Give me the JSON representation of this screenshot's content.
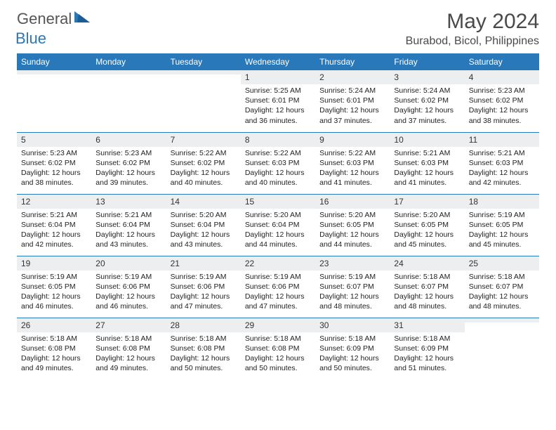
{
  "brand": {
    "part1": "General",
    "part2": "Blue"
  },
  "title": "May 2024",
  "location": "Burabod, Bicol, Philippines",
  "colors": {
    "header_bg": "#2978b9",
    "header_text": "#ffffff",
    "daynum_bg": "#eceeef",
    "divider": "#2978b9",
    "text": "#222222",
    "title_text": "#4a4a4a"
  },
  "day_headers": [
    "Sunday",
    "Monday",
    "Tuesday",
    "Wednesday",
    "Thursday",
    "Friday",
    "Saturday"
  ],
  "weeks": [
    [
      {
        "n": "",
        "sr": "",
        "ss": "",
        "dl": ""
      },
      {
        "n": "",
        "sr": "",
        "ss": "",
        "dl": ""
      },
      {
        "n": "",
        "sr": "",
        "ss": "",
        "dl": ""
      },
      {
        "n": "1",
        "sr": "5:25 AM",
        "ss": "6:01 PM",
        "dl": "12 hours and 36 minutes."
      },
      {
        "n": "2",
        "sr": "5:24 AM",
        "ss": "6:01 PM",
        "dl": "12 hours and 37 minutes."
      },
      {
        "n": "3",
        "sr": "5:24 AM",
        "ss": "6:02 PM",
        "dl": "12 hours and 37 minutes."
      },
      {
        "n": "4",
        "sr": "5:23 AM",
        "ss": "6:02 PM",
        "dl": "12 hours and 38 minutes."
      }
    ],
    [
      {
        "n": "5",
        "sr": "5:23 AM",
        "ss": "6:02 PM",
        "dl": "12 hours and 38 minutes."
      },
      {
        "n": "6",
        "sr": "5:23 AM",
        "ss": "6:02 PM",
        "dl": "12 hours and 39 minutes."
      },
      {
        "n": "7",
        "sr": "5:22 AM",
        "ss": "6:02 PM",
        "dl": "12 hours and 40 minutes."
      },
      {
        "n": "8",
        "sr": "5:22 AM",
        "ss": "6:03 PM",
        "dl": "12 hours and 40 minutes."
      },
      {
        "n": "9",
        "sr": "5:22 AM",
        "ss": "6:03 PM",
        "dl": "12 hours and 41 minutes."
      },
      {
        "n": "10",
        "sr": "5:21 AM",
        "ss": "6:03 PM",
        "dl": "12 hours and 41 minutes."
      },
      {
        "n": "11",
        "sr": "5:21 AM",
        "ss": "6:03 PM",
        "dl": "12 hours and 42 minutes."
      }
    ],
    [
      {
        "n": "12",
        "sr": "5:21 AM",
        "ss": "6:04 PM",
        "dl": "12 hours and 42 minutes."
      },
      {
        "n": "13",
        "sr": "5:21 AM",
        "ss": "6:04 PM",
        "dl": "12 hours and 43 minutes."
      },
      {
        "n": "14",
        "sr": "5:20 AM",
        "ss": "6:04 PM",
        "dl": "12 hours and 43 minutes."
      },
      {
        "n": "15",
        "sr": "5:20 AM",
        "ss": "6:04 PM",
        "dl": "12 hours and 44 minutes."
      },
      {
        "n": "16",
        "sr": "5:20 AM",
        "ss": "6:05 PM",
        "dl": "12 hours and 44 minutes."
      },
      {
        "n": "17",
        "sr": "5:20 AM",
        "ss": "6:05 PM",
        "dl": "12 hours and 45 minutes."
      },
      {
        "n": "18",
        "sr": "5:19 AM",
        "ss": "6:05 PM",
        "dl": "12 hours and 45 minutes."
      }
    ],
    [
      {
        "n": "19",
        "sr": "5:19 AM",
        "ss": "6:05 PM",
        "dl": "12 hours and 46 minutes."
      },
      {
        "n": "20",
        "sr": "5:19 AM",
        "ss": "6:06 PM",
        "dl": "12 hours and 46 minutes."
      },
      {
        "n": "21",
        "sr": "5:19 AM",
        "ss": "6:06 PM",
        "dl": "12 hours and 47 minutes."
      },
      {
        "n": "22",
        "sr": "5:19 AM",
        "ss": "6:06 PM",
        "dl": "12 hours and 47 minutes."
      },
      {
        "n": "23",
        "sr": "5:19 AM",
        "ss": "6:07 PM",
        "dl": "12 hours and 48 minutes."
      },
      {
        "n": "24",
        "sr": "5:18 AM",
        "ss": "6:07 PM",
        "dl": "12 hours and 48 minutes."
      },
      {
        "n": "25",
        "sr": "5:18 AM",
        "ss": "6:07 PM",
        "dl": "12 hours and 48 minutes."
      }
    ],
    [
      {
        "n": "26",
        "sr": "5:18 AM",
        "ss": "6:08 PM",
        "dl": "12 hours and 49 minutes."
      },
      {
        "n": "27",
        "sr": "5:18 AM",
        "ss": "6:08 PM",
        "dl": "12 hours and 49 minutes."
      },
      {
        "n": "28",
        "sr": "5:18 AM",
        "ss": "6:08 PM",
        "dl": "12 hours and 50 minutes."
      },
      {
        "n": "29",
        "sr": "5:18 AM",
        "ss": "6:08 PM",
        "dl": "12 hours and 50 minutes."
      },
      {
        "n": "30",
        "sr": "5:18 AM",
        "ss": "6:09 PM",
        "dl": "12 hours and 50 minutes."
      },
      {
        "n": "31",
        "sr": "5:18 AM",
        "ss": "6:09 PM",
        "dl": "12 hours and 51 minutes."
      },
      {
        "n": "",
        "sr": "",
        "ss": "",
        "dl": ""
      }
    ]
  ],
  "labels": {
    "sunrise": "Sunrise:",
    "sunset": "Sunset:",
    "daylight": "Daylight:"
  }
}
